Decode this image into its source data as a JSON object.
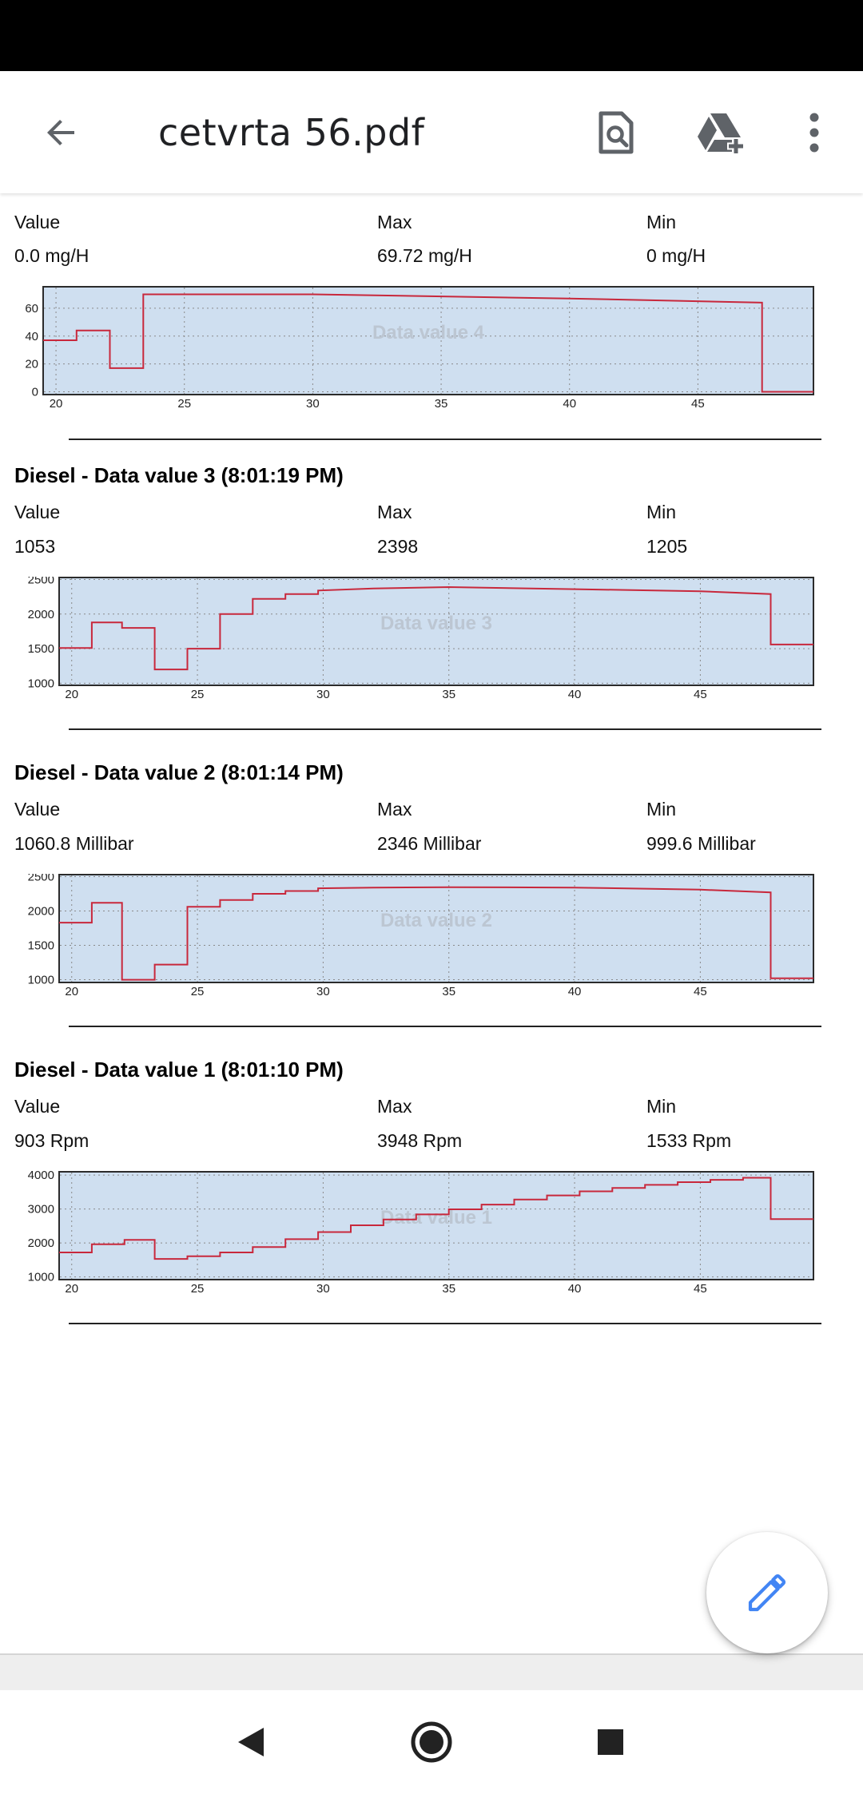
{
  "app": {
    "title": "cetvrta 56.pdf"
  },
  "icons": {
    "back": "arrow-back-icon",
    "search_doc": "document-search-icon",
    "drive_add": "drive-add-icon",
    "more": "more-vert-icon",
    "edit": "pencil-icon"
  },
  "colors": {
    "accent": "#4285f4",
    "series": "#c8283c",
    "plot_bg": "#cfdff0"
  },
  "labels": {
    "value": "Value",
    "max": "Max",
    "min": "Min"
  },
  "sections": [
    {
      "title": "",
      "value": "0.0 mg/H",
      "max": "69.72 mg/H",
      "min": "0 mg/H"
    },
    {
      "title": "Diesel - Data value 3 (8:01:19 PM)",
      "value": "1053",
      "max": "2398",
      "min": "1205"
    },
    {
      "title": "Diesel - Data value 2 (8:01:14 PM)",
      "value": "1060.8 Millibar",
      "max": "2346 Millibar",
      "min": "999.6 Millibar"
    },
    {
      "title": "Diesel - Data value 1 (8:01:10 PM)",
      "value": "903 Rpm",
      "max": "3948 Rpm",
      "min": "1533 Rpm"
    }
  ],
  "chart_data": [
    {
      "type": "line",
      "watermark": "Data value 4",
      "xlim": [
        19.5,
        49.5
      ],
      "xticks": [
        20,
        25,
        30,
        35,
        40,
        45
      ],
      "ylim": [
        -2,
        76
      ],
      "yticks": [
        0,
        20,
        40,
        60
      ],
      "series": [
        {
          "x": [
            19.5,
            20.8,
            20.8,
            22.1,
            22.1,
            23.4,
            23.4,
            30,
            40,
            47.5,
            47.5,
            49.5
          ],
          "y": [
            37,
            37,
            44,
            44,
            17,
            17,
            70,
            70,
            67,
            64,
            0,
            0
          ]
        }
      ]
    },
    {
      "type": "line",
      "watermark": "Data value 3",
      "xlim": [
        19.5,
        49.5
      ],
      "xticks": [
        20,
        25,
        30,
        35,
        40,
        45
      ],
      "ylim": [
        970,
        2540
      ],
      "yticks": [
        1000,
        1500,
        2000,
        2500
      ],
      "series": [
        {
          "x": [
            19.5,
            20.8,
            20.8,
            22.0,
            22.0,
            23.3,
            23.3,
            24.6,
            24.6,
            25.9,
            25.9,
            27.2,
            27.2,
            28.5,
            28.5,
            29.8,
            29.8,
            32,
            35,
            40,
            45,
            47.8,
            47.8,
            49.5
          ],
          "y": [
            1510,
            1510,
            1880,
            1880,
            1800,
            1800,
            1200,
            1200,
            1500,
            1500,
            2000,
            2000,
            2220,
            2220,
            2290,
            2290,
            2340,
            2370,
            2390,
            2360,
            2330,
            2290,
            1560,
            1560
          ]
        }
      ]
    },
    {
      "type": "line",
      "watermark": "Data value 2",
      "xlim": [
        19.5,
        49.5
      ],
      "xticks": [
        20,
        25,
        30,
        35,
        40,
        45
      ],
      "ylim": [
        960,
        2540
      ],
      "yticks": [
        1000,
        1500,
        2000,
        2500
      ],
      "series": [
        {
          "x": [
            19.5,
            20.8,
            20.8,
            22.0,
            22.0,
            23.3,
            23.3,
            24.6,
            24.6,
            25.9,
            25.9,
            27.2,
            27.2,
            28.5,
            28.5,
            29.8,
            29.8,
            32,
            35,
            40,
            45,
            47.8,
            47.8,
            49.5
          ],
          "y": [
            1830,
            1830,
            2120,
            2120,
            1000,
            1000,
            1220,
            1220,
            2060,
            2060,
            2160,
            2160,
            2250,
            2250,
            2290,
            2290,
            2330,
            2340,
            2346,
            2340,
            2310,
            2270,
            1020,
            1020
          ]
        }
      ]
    },
    {
      "type": "line",
      "watermark": "Data value 1",
      "xlim": [
        19.5,
        49.5
      ],
      "xticks": [
        20,
        25,
        30,
        35,
        40,
        45
      ],
      "ylim": [
        920,
        4120
      ],
      "yticks": [
        1000,
        2000,
        3000,
        4000
      ],
      "series": [
        {
          "x": [
            19.5,
            20.8,
            20.8,
            22.1,
            22.1,
            23.3,
            23.3,
            24.6,
            24.6,
            25.9,
            25.9,
            27.2,
            27.2,
            28.5,
            28.5,
            29.8,
            29.8,
            31.1,
            31.1,
            32.4,
            32.4,
            33.7,
            33.7,
            35.0,
            35.0,
            36.3,
            36.3,
            37.6,
            37.6,
            38.9,
            38.9,
            40.2,
            40.2,
            41.5,
            41.5,
            42.8,
            42.8,
            44.1,
            44.1,
            45.4,
            45.4,
            46.7,
            46.7,
            47.8,
            47.8,
            49.5
          ],
          "y": [
            1720,
            1720,
            1960,
            1960,
            2090,
            2090,
            1530,
            1530,
            1610,
            1610,
            1720,
            1720,
            1880,
            1880,
            2110,
            2110,
            2320,
            2320,
            2520,
            2520,
            2690,
            2690,
            2840,
            2840,
            2990,
            2990,
            3130,
            3130,
            3280,
            3280,
            3400,
            3400,
            3520,
            3520,
            3620,
            3620,
            3710,
            3710,
            3790,
            3790,
            3860,
            3860,
            3920,
            3920,
            2700,
            2700
          ]
        }
      ]
    }
  ]
}
